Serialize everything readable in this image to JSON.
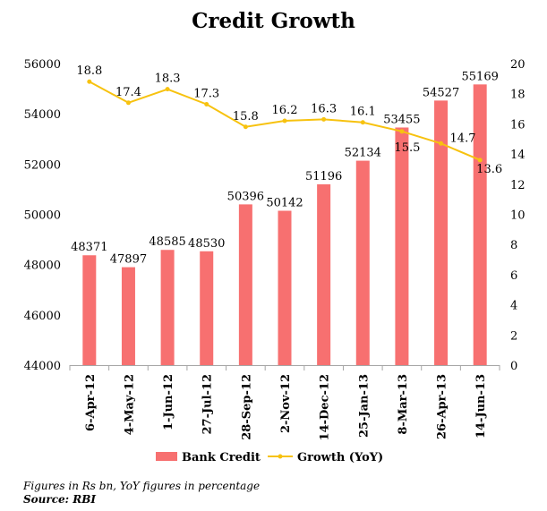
{
  "chart_data": {
    "type": "bar",
    "title": "Credit Growth",
    "categories": [
      "6-Apr-12",
      "4-May-12",
      "1-Jun-12",
      "27-Jul-12",
      "28-Sep-12",
      "2-Nov-12",
      "14-Dec-12",
      "25-Jan-13",
      "8-Mar-13",
      "26-Apr-13",
      "14-Jun-13"
    ],
    "series": [
      {
        "name": "Bank Credit",
        "type": "bar",
        "axis": "left",
        "color": "#f77070",
        "values": [
          48371,
          47897,
          48585,
          48530,
          50396,
          50142,
          51196,
          52134,
          53455,
          54527,
          55169
        ]
      },
      {
        "name": "Growth (YoY)",
        "type": "line",
        "axis": "right",
        "color": "#f7c20f",
        "values": [
          18.8,
          17.4,
          18.3,
          17.3,
          15.8,
          16.2,
          16.3,
          16.1,
          15.5,
          14.7,
          13.6
        ]
      }
    ],
    "left_axis": {
      "ylim": [
        44000,
        56000
      ],
      "ticks": [
        "44000",
        "46000",
        "48000",
        "50000",
        "52000",
        "54000",
        "56000"
      ]
    },
    "right_axis": {
      "ylim": [
        0,
        20
      ],
      "ticks": [
        "0",
        "2",
        "4",
        "6",
        "8",
        "10",
        "12",
        "14",
        "16",
        "18",
        "20"
      ]
    },
    "legend": "bottom",
    "grid": false
  },
  "notes": {
    "line1": "Figures in Rs bn, YoY figures in percentage",
    "line2": "Source: RBI"
  }
}
